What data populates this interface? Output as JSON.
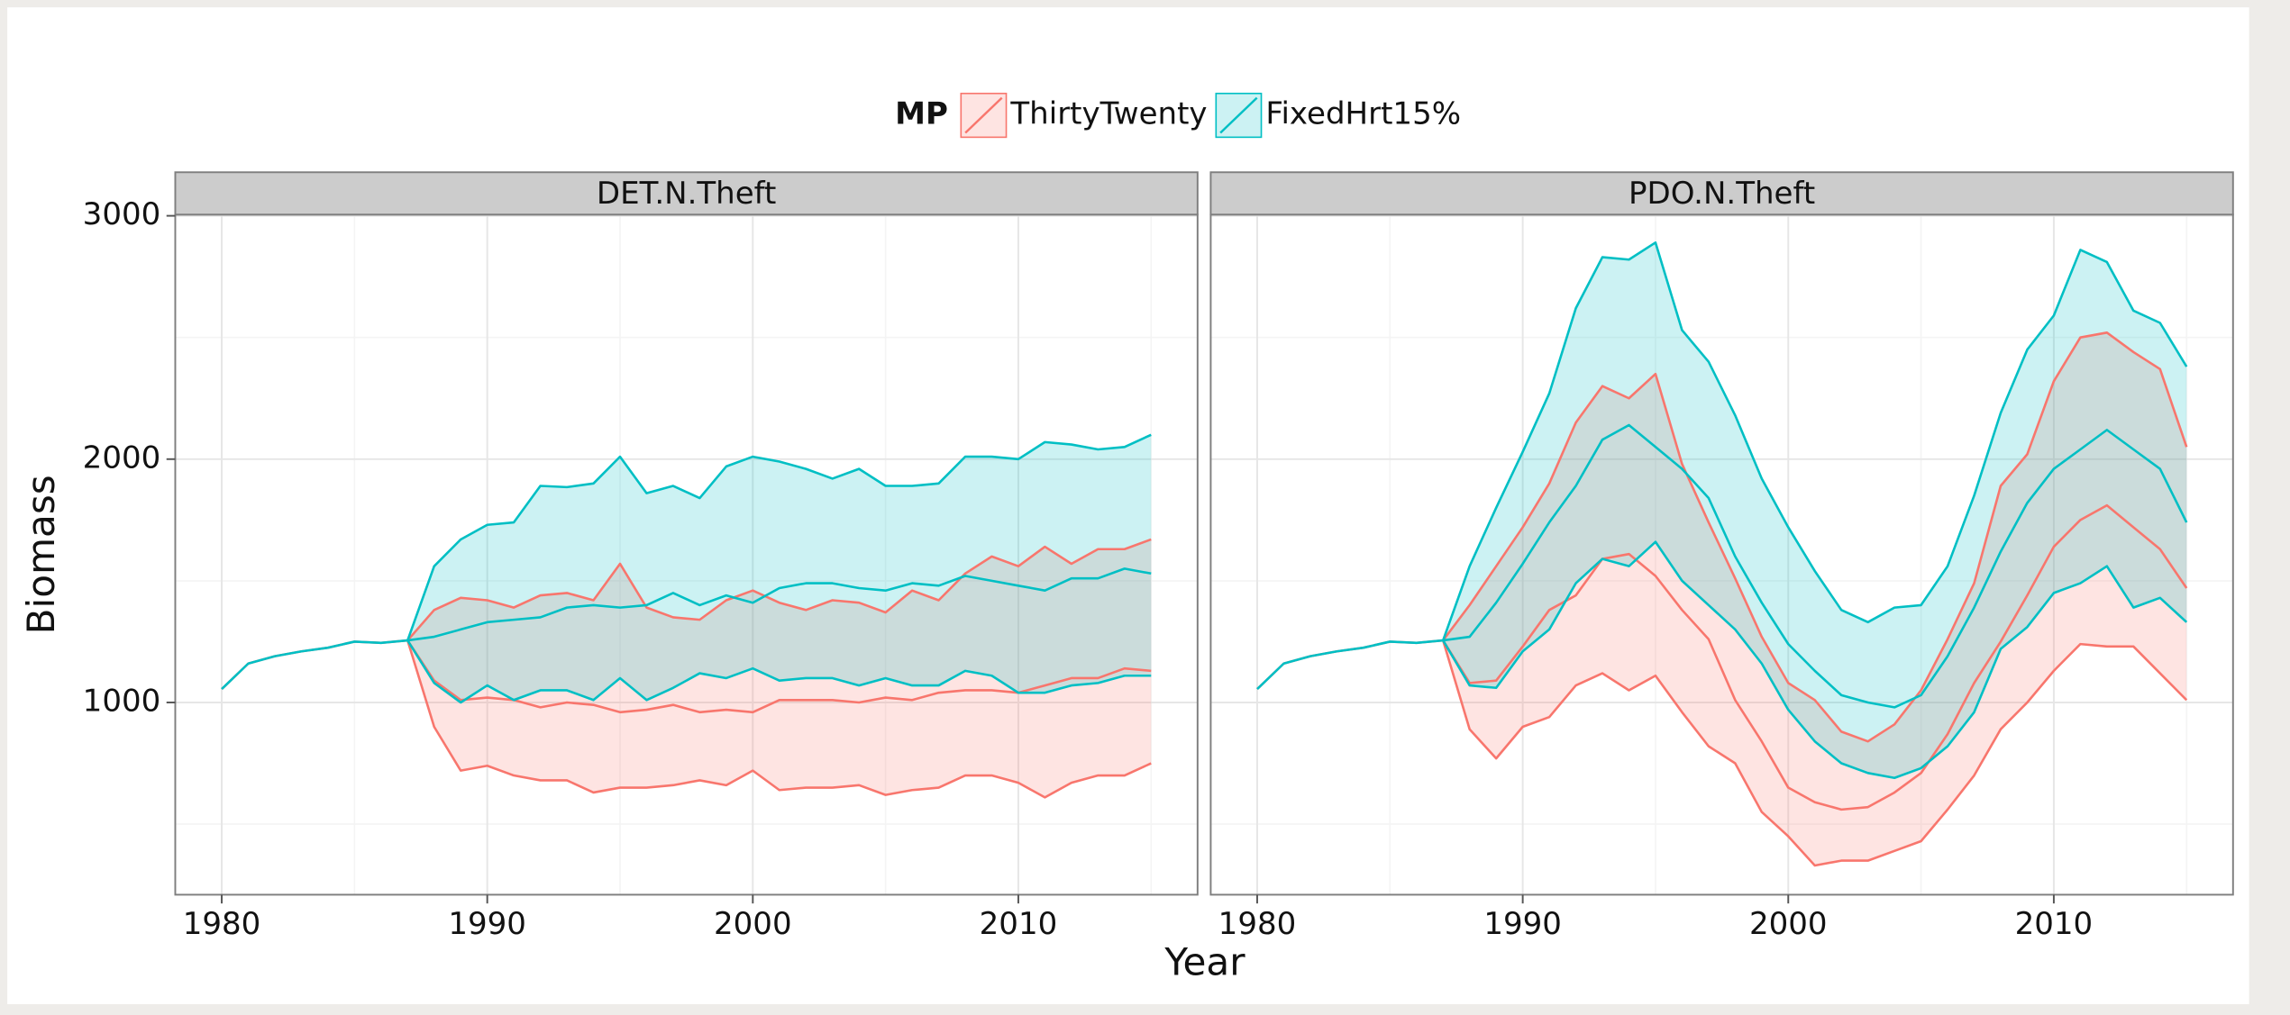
{
  "legend_title": "MP",
  "xlabel": "Year",
  "ylabel": "Biomass",
  "chart_data": [
    {
      "type": "line",
      "title": "DET.N.Theft",
      "x": [
        1980,
        1981,
        1982,
        1983,
        1984,
        1985,
        1986,
        1987,
        1988,
        1989,
        1990,
        1991,
        1992,
        1993,
        1994,
        1995,
        1996,
        1997,
        1998,
        1999,
        2000,
        2001,
        2002,
        2003,
        2004,
        2005,
        2006,
        2007,
        2008,
        2009,
        2010,
        2011,
        2012,
        2013,
        2014,
        2015
      ],
      "xlim": [
        1978.25,
        2016.75
      ],
      "ylim": [
        210,
        3005
      ],
      "xticks": [
        1980,
        1990,
        2000,
        2010
      ],
      "yticks": [
        1000,
        2000,
        3000
      ],
      "xminor": [
        1985,
        1995,
        2005,
        2015
      ],
      "yminor": [
        500,
        1500,
        2500
      ],
      "grid": true,
      "series": [
        {
          "name": "ThirtyTwenty",
          "color": "#F8766D",
          "values": [
            1055,
            1160,
            1190,
            1210,
            1225,
            1250,
            1245,
            1255,
            1090,
            1010,
            1020,
            1010,
            980,
            1000,
            990,
            960,
            970,
            990,
            960,
            970,
            960,
            1010,
            1010,
            1010,
            1000,
            1020,
            1010,
            1040,
            1050,
            1050,
            1040,
            1070,
            1100,
            1100,
            1140,
            1130
          ],
          "lower": [
            null,
            null,
            null,
            null,
            null,
            null,
            null,
            1255,
            900,
            720,
            740,
            700,
            680,
            680,
            630,
            650,
            650,
            660,
            680,
            660,
            720,
            640,
            650,
            650,
            660,
            620,
            640,
            650,
            700,
            700,
            670,
            610,
            670,
            700,
            700,
            750
          ],
          "upper": [
            null,
            null,
            null,
            null,
            null,
            null,
            null,
            1255,
            1380,
            1430,
            1420,
            1390,
            1440,
            1450,
            1420,
            1570,
            1390,
            1350,
            1340,
            1420,
            1460,
            1410,
            1380,
            1420,
            1410,
            1370,
            1460,
            1420,
            1530,
            1600,
            1560,
            1640,
            1570,
            1630,
            1630,
            1670
          ]
        },
        {
          "name": "FixedHrt15%",
          "color": "#00BFC4",
          "values": [
            1055,
            1160,
            1190,
            1210,
            1225,
            1250,
            1245,
            1255,
            1270,
            1300,
            1330,
            1340,
            1350,
            1390,
            1400,
            1390,
            1400,
            1450,
            1400,
            1440,
            1410,
            1470,
            1490,
            1490,
            1470,
            1460,
            1490,
            1480,
            1520,
            1500,
            1480,
            1460,
            1510,
            1510,
            1550,
            1530
          ],
          "lower": [
            null,
            null,
            null,
            null,
            null,
            null,
            null,
            1255,
            1080,
            1000,
            1070,
            1010,
            1050,
            1050,
            1010,
            1100,
            1010,
            1060,
            1120,
            1100,
            1140,
            1090,
            1100,
            1100,
            1070,
            1100,
            1070,
            1070,
            1130,
            1110,
            1040,
            1040,
            1070,
            1080,
            1110,
            1110
          ],
          "upper": [
            null,
            null,
            null,
            null,
            null,
            null,
            null,
            1255,
            1560,
            1670,
            1730,
            1740,
            1890,
            1885,
            1900,
            2010,
            1860,
            1890,
            1840,
            1970,
            2010,
            1990,
            1960,
            1920,
            1960,
            1890,
            1890,
            1900,
            2010,
            2010,
            2000,
            2070,
            2060,
            2040,
            2050,
            2100
          ]
        }
      ]
    },
    {
      "type": "line",
      "title": "PDO.N.Theft",
      "x": [
        1980,
        1981,
        1982,
        1983,
        1984,
        1985,
        1986,
        1987,
        1988,
        1989,
        1990,
        1991,
        1992,
        1993,
        1994,
        1995,
        1996,
        1997,
        1998,
        1999,
        2000,
        2001,
        2002,
        2003,
        2004,
        2005,
        2006,
        2007,
        2008,
        2009,
        2010,
        2011,
        2012,
        2013,
        2014,
        2015
      ],
      "xlim": [
        1978.25,
        2016.75
      ],
      "ylim": [
        210,
        3005
      ],
      "xticks": [
        1980,
        1990,
        2000,
        2010
      ],
      "yticks": [
        1000,
        2000,
        3000
      ],
      "xminor": [
        1985,
        1995,
        2005,
        2015
      ],
      "yminor": [
        500,
        1500,
        2500
      ],
      "grid": true,
      "series": [
        {
          "name": "ThirtyTwenty",
          "color": "#F8766D",
          "values": [
            1055,
            1160,
            1190,
            1210,
            1225,
            1250,
            1245,
            1255,
            1080,
            1090,
            1230,
            1380,
            1440,
            1590,
            1610,
            1520,
            1380,
            1260,
            1010,
            840,
            650,
            590,
            560,
            570,
            630,
            710,
            870,
            1080,
            1250,
            1440,
            1640,
            1750,
            1810,
            1720,
            1630,
            1470
          ],
          "lower": [
            null,
            null,
            null,
            null,
            null,
            null,
            null,
            1255,
            890,
            770,
            900,
            940,
            1070,
            1120,
            1050,
            1110,
            960,
            820,
            750,
            550,
            450,
            330,
            350,
            350,
            390,
            430,
            560,
            700,
            890,
            1000,
            1130,
            1240,
            1230,
            1230,
            1120,
            1010
          ],
          "upper": [
            null,
            null,
            null,
            null,
            null,
            null,
            null,
            1255,
            1400,
            1560,
            1720,
            1900,
            2150,
            2300,
            2250,
            2350,
            1980,
            1740,
            1510,
            1270,
            1080,
            1010,
            880,
            840,
            910,
            1050,
            1260,
            1490,
            1890,
            2020,
            2320,
            2500,
            2520,
            2440,
            2370,
            2050
          ]
        },
        {
          "name": "FixedHrt15%",
          "color": "#00BFC4",
          "values": [
            1055,
            1160,
            1190,
            1210,
            1225,
            1250,
            1245,
            1255,
            1270,
            1410,
            1570,
            1740,
            1890,
            2080,
            2140,
            2050,
            1960,
            1840,
            1600,
            1410,
            1240,
            1130,
            1030,
            1000,
            980,
            1030,
            1190,
            1390,
            1620,
            1820,
            1960,
            2040,
            2120,
            2040,
            1960,
            1740
          ],
          "lower": [
            null,
            null,
            null,
            null,
            null,
            null,
            null,
            1255,
            1070,
            1060,
            1210,
            1300,
            1490,
            1590,
            1560,
            1660,
            1500,
            1400,
            1300,
            1160,
            970,
            840,
            750,
            710,
            690,
            730,
            820,
            960,
            1220,
            1310,
            1450,
            1490,
            1560,
            1390,
            1430,
            1330
          ],
          "upper": [
            null,
            null,
            null,
            null,
            null,
            null,
            null,
            1255,
            1560,
            1800,
            2030,
            2270,
            2620,
            2830,
            2820,
            2890,
            2530,
            2400,
            2180,
            1920,
            1720,
            1540,
            1380,
            1330,
            1390,
            1400,
            1560,
            1850,
            2190,
            2450,
            2590,
            2860,
            2810,
            2610,
            2560,
            2380
          ]
        }
      ]
    }
  ]
}
